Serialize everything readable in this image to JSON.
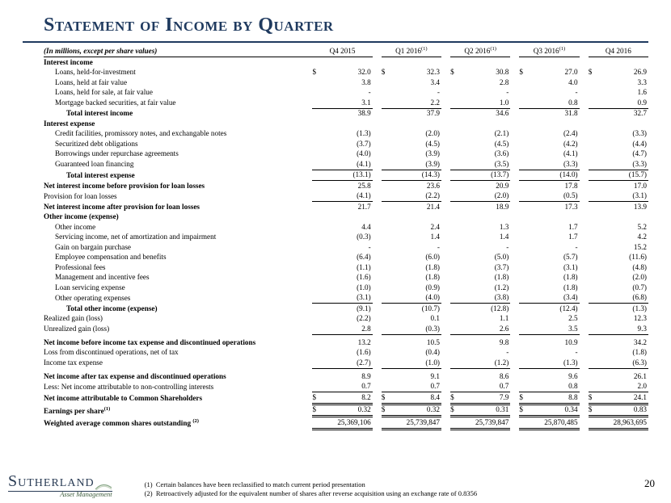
{
  "title": "Statement of Income by Quarter",
  "subtitle_italic": "(In millions, except per share values)",
  "page_number": "20",
  "columns": [
    "Q4 2015",
    "Q1 2016",
    "Q2 2016",
    "Q3 2016",
    "Q4 2016"
  ],
  "column_sup": [
    "",
    "(1)",
    "(1)",
    "(1)",
    ""
  ],
  "logo": {
    "main": "Sutherland",
    "sub": "Asset Management"
  },
  "footnotes": [
    "Certain balances have been reclassified to match current period presentation",
    "Retroactively adjusted for the equivalent number of shares after reverse acquisition using an exchange rate of 0.8356"
  ],
  "colors": {
    "brand": "#1f3a5f",
    "text": "#000000",
    "bg": "#ffffff",
    "logo_sub": "#3a5a3a"
  },
  "rows": [
    {
      "label": "Interest income",
      "bold": true,
      "indent": 0
    },
    {
      "label": "Loans, held-for-investment",
      "indent": 1,
      "vals": [
        "32.0",
        "32.3",
        "30.8",
        "27.0",
        "26.9"
      ],
      "sym": "$"
    },
    {
      "label": "Loans, held at fair value",
      "indent": 1,
      "vals": [
        "3.8",
        "3.4",
        "2.8",
        "4.0",
        "3.3"
      ]
    },
    {
      "label": "Loans, held for sale, at fair value",
      "indent": 1,
      "vals": [
        "-",
        "-",
        "-",
        "-",
        "1.6"
      ]
    },
    {
      "label": "Mortgage backed securities, at fair value",
      "indent": 1,
      "vals": [
        "3.1",
        "2.2",
        "1.0",
        "0.8",
        "0.9"
      ]
    },
    {
      "label": "Total interest income",
      "bold": true,
      "indent": 2,
      "vals": [
        "38.9",
        "37.9",
        "34.6",
        "31.8",
        "32.7"
      ],
      "st_top": true
    },
    {
      "label": "Interest expense",
      "bold": true,
      "indent": 0
    },
    {
      "label": "Credit facilities, promissory notes, and exchangable notes",
      "indent": 1,
      "vals": [
        "(1.3)",
        "(2.0)",
        "(2.1)",
        "(2.4)",
        "(3.3)"
      ]
    },
    {
      "label": "Securitized debt obligations",
      "indent": 1,
      "vals": [
        "(3.7)",
        "(4.5)",
        "(4.5)",
        "(4.2)",
        "(4.4)"
      ]
    },
    {
      "label": "Borrowings under repurchase agreements",
      "indent": 1,
      "vals": [
        "(4.0)",
        "(3.9)",
        "(3.6)",
        "(4.1)",
        "(4.7)"
      ]
    },
    {
      "label": "Guaranteed loan financing",
      "indent": 1,
      "vals": [
        "(4.1)",
        "(3.9)",
        "(3.5)",
        "(3.3)",
        "(3.3)"
      ]
    },
    {
      "label": "Total interest expense",
      "bold": true,
      "indent": 2,
      "vals": [
        "(13.1)",
        "(14.3)",
        "(13.7)",
        "(14.0)",
        "(15.7)"
      ],
      "st_top": true
    },
    {
      "label": "Net interest income before provision for loan losses",
      "bold": true,
      "indent": 0,
      "vals": [
        "25.8",
        "23.6",
        "20.9",
        "17.8",
        "17.0"
      ],
      "st_top": true
    },
    {
      "label": "Provision for loan losses",
      "indent": 0,
      "vals": [
        "(4.1)",
        "(2.2)",
        "(2.0)",
        "(0.5)",
        "(3.1)"
      ]
    },
    {
      "label": "Net interest income after provision for loan losses",
      "bold": true,
      "indent": 0,
      "vals": [
        "21.7",
        "21.4",
        "18.9",
        "17.3",
        "13.9"
      ],
      "st_top": true
    },
    {
      "label": "Other income (expense)",
      "bold": true,
      "indent": 0
    },
    {
      "label": "Other income",
      "indent": 1,
      "vals": [
        "4.4",
        "2.4",
        "1.3",
        "1.7",
        "5.2"
      ]
    },
    {
      "label": "Servicing income, net of amortization and impairment",
      "indent": 1,
      "vals": [
        "(0.3)",
        "1.4",
        "1.4",
        "1.7",
        "4.2"
      ]
    },
    {
      "label": "Gain on bargain purchase",
      "indent": 1,
      "vals": [
        "-",
        "-",
        "-",
        "-",
        "15.2"
      ]
    },
    {
      "label": "Employee compensation and benefits",
      "indent": 1,
      "vals": [
        "(6.4)",
        "(6.0)",
        "(5.0)",
        "(5.7)",
        "(11.6)"
      ]
    },
    {
      "label": "Professional fees",
      "indent": 1,
      "vals": [
        "(1.1)",
        "(1.8)",
        "(3.7)",
        "(3.1)",
        "(4.8)"
      ]
    },
    {
      "label": "Management and incentive fees",
      "indent": 1,
      "vals": [
        "(1.6)",
        "(1.8)",
        "(1.8)",
        "(1.8)",
        "(2.0)"
      ]
    },
    {
      "label": "Loan servicing expense",
      "indent": 1,
      "vals": [
        "(1.0)",
        "(0.9)",
        "(1.2)",
        "(1.8)",
        "(0.7)"
      ]
    },
    {
      "label": "Other operating expenses",
      "indent": 1,
      "vals": [
        "(3.1)",
        "(4.0)",
        "(3.8)",
        "(3.4)",
        "(6.8)"
      ]
    },
    {
      "label": "Total other income (expense)",
      "bold": true,
      "indent": 2,
      "vals": [
        "(9.1)",
        "(10.7)",
        "(12.8)",
        "(12.4)",
        "(1.3)"
      ],
      "st_top": true
    },
    {
      "label": "Realized gain (loss)",
      "indent": 0,
      "vals": [
        "(2.2)",
        "0.1",
        "1.1",
        "2.5",
        "12.3"
      ]
    },
    {
      "label": "Unrealized gain (loss)",
      "indent": 0,
      "vals": [
        "2.8",
        "(0.3)",
        "2.6",
        "3.5",
        "9.3"
      ],
      "st_bot": true
    },
    {
      "spacer": true
    },
    {
      "label": "Net income before income tax expense and discontinued operations",
      "bold": true,
      "indent": 0,
      "vals": [
        "13.2",
        "10.5",
        "9.8",
        "10.9",
        "34.2"
      ]
    },
    {
      "label": "Loss from discontinued operations, net of tax",
      "indent": 0,
      "vals": [
        "(1.6)",
        "(0.4)",
        "-",
        "-",
        "(1.8)"
      ]
    },
    {
      "label": "Income tax expense",
      "indent": 0,
      "vals": [
        "(2.7)",
        "(1.0)",
        "(1.2)",
        "(1.3)",
        "(6.3)"
      ],
      "st_bot": true
    },
    {
      "spacer": true
    },
    {
      "label": "Net income after tax expense and discontinued operations",
      "bold": true,
      "indent": 0,
      "vals": [
        "8.9",
        "9.1",
        "8.6",
        "9.6",
        "26.1"
      ]
    },
    {
      "label": "Less: Net income attributable to non-controlling interests",
      "indent": 0,
      "vals": [
        "0.7",
        "0.7",
        "0.7",
        "0.8",
        "2.0"
      ]
    },
    {
      "label": "Net income attributable to Common Shareholders",
      "bold": true,
      "indent": 0,
      "vals": [
        "8.2",
        "8.4",
        "7.9",
        "8.8",
        "24.1"
      ],
      "sym": "$",
      "st_top": true,
      "dbl": true
    },
    {
      "label": "Earnings per share",
      "bold": true,
      "indent": 0,
      "sup": "(1)",
      "vals": [
        "0.32",
        "0.32",
        "0.31",
        "0.34",
        "0.83"
      ],
      "sym": "$",
      "dbl": true
    },
    {
      "label": "Weighted average common shares outstanding ",
      "bold": true,
      "indent": 0,
      "sup": "(2)",
      "vals": [
        "25,369,106",
        "25,739,847",
        "25,739,847",
        "25,870,485",
        "28,963,695"
      ],
      "dbl": true
    }
  ]
}
